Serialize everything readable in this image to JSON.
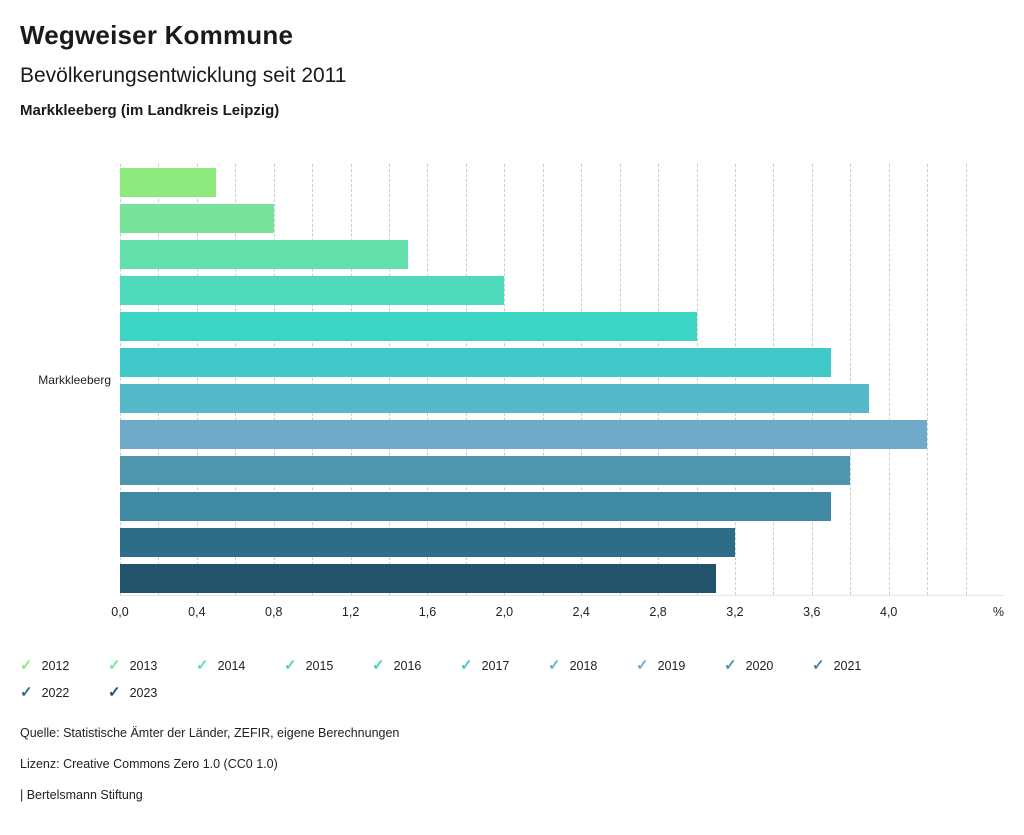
{
  "header": {
    "title": "Wegweiser Kommune",
    "subtitle": "Bevölkerungsentwicklung seit 2011",
    "region": "Markkleeberg (im Landkreis Leipzig)"
  },
  "chart_data": {
    "type": "bar",
    "orientation": "horizontal",
    "group_label": "Markkleeberg",
    "xlabel": "%",
    "xlim": [
      0,
      4.6
    ],
    "grid": "dashed-vertical",
    "grid_step": 0.2,
    "grid_max": 4.4,
    "legend_position": "bottom",
    "series": [
      {
        "name": "2012",
        "value": 0.5,
        "color": "#8de87e"
      },
      {
        "name": "2013",
        "value": 0.8,
        "color": "#79e29b"
      },
      {
        "name": "2014",
        "value": 1.5,
        "color": "#63dfac"
      },
      {
        "name": "2015",
        "value": 2.0,
        "color": "#4edabb"
      },
      {
        "name": "2016",
        "value": 3.0,
        "color": "#3cd5c4"
      },
      {
        "name": "2017",
        "value": 3.7,
        "color": "#41c9c9"
      },
      {
        "name": "2018",
        "value": 3.9,
        "color": "#55b9c9"
      },
      {
        "name": "2019",
        "value": 4.2,
        "color": "#6fabc9"
      },
      {
        "name": "2020",
        "value": 3.8,
        "color": "#4f96ad"
      },
      {
        "name": "2021",
        "value": 3.7,
        "color": "#3f89a2"
      },
      {
        "name": "2022",
        "value": 3.2,
        "color": "#2e6d87"
      },
      {
        "name": "2023",
        "value": 3.1,
        "color": "#22536a"
      }
    ],
    "xticks": [
      {
        "value": 0.0,
        "label": "0,0"
      },
      {
        "value": 0.4,
        "label": "0,4"
      },
      {
        "value": 0.8,
        "label": "0,8"
      },
      {
        "value": 1.2,
        "label": "1,2"
      },
      {
        "value": 1.6,
        "label": "1,6"
      },
      {
        "value": 2.0,
        "label": "2,0"
      },
      {
        "value": 2.4,
        "label": "2,4"
      },
      {
        "value": 2.8,
        "label": "2,8"
      },
      {
        "value": 3.2,
        "label": "3,2"
      },
      {
        "value": 3.6,
        "label": "3,6"
      },
      {
        "value": 4.0,
        "label": "4,0"
      }
    ]
  },
  "legend": {
    "check_glyph": "✓"
  },
  "footer": {
    "source": "Quelle: Statistische Ämter der Länder, ZEFIR, eigene Berechnungen",
    "license": "Lizenz: Creative Commons Zero 1.0 (CC0 1.0)",
    "brand": "| Bertelsmann Stiftung"
  }
}
